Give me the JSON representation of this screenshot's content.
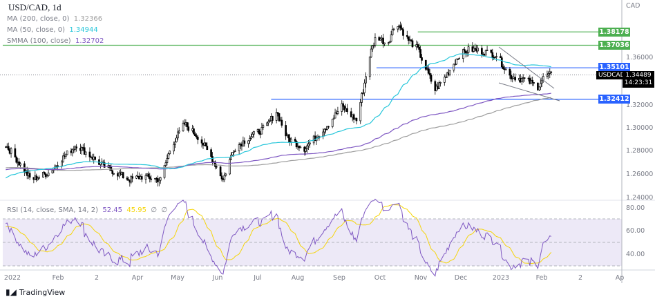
{
  "header": {
    "title": "USD/CAD, 1d",
    "currency": "CAD",
    "logo": "TradingView"
  },
  "indicators": [
    {
      "label": "MA (200, close, 0)",
      "value": "1.32366",
      "color": "#9e9e9e"
    },
    {
      "label": "MA (50, close, 0)",
      "value": "1.34944",
      "color": "#26c6da"
    },
    {
      "label": "SMMA (100, close)",
      "value": "1.32702",
      "color": "#7e57c2"
    }
  ],
  "rsi": {
    "label": "RSI (14, close, SMA, 14, 2)",
    "value": "52.45",
    "sma": "45.95",
    "extra1": "∅",
    "extra2": "∅",
    "ticks": [
      "80.00",
      "60.00",
      "40.00"
    ],
    "rsi_color": "#7e57c2",
    "sma_color": "#f5d50a"
  },
  "chart_data": {
    "type": "candlestick",
    "symbol": "USDCAD",
    "ylim": [
      1.235,
      1.395
    ],
    "y_ticks": [
      "1.36000",
      "1.32000",
      "1.30000",
      "1.28000",
      "1.26000",
      "1.24000"
    ],
    "x_ticks": [
      "2022",
      "Feb",
      "2",
      "Apr",
      "May",
      "Jun",
      "Jul",
      "Aug",
      "Sep",
      "Oct",
      "Nov",
      "Dec",
      "2023",
      "Feb",
      "2",
      "Ap"
    ],
    "approx_closes": [
      [
        "2021-12-25",
        1.288
      ],
      [
        "2022-01-02",
        1.276
      ],
      [
        "2022-01-15",
        1.255
      ],
      [
        "2022-01-28",
        1.261
      ],
      [
        "2022-02-07",
        1.273
      ],
      [
        "2022-02-18",
        1.285
      ],
      [
        "2022-02-28",
        1.276
      ],
      [
        "2022-03-10",
        1.267
      ],
      [
        "2022-03-20",
        1.261
      ],
      [
        "2022-03-30",
        1.255
      ],
      [
        "2022-04-09",
        1.258
      ],
      [
        "2022-04-22",
        1.255
      ],
      [
        "2022-04-30",
        1.284
      ],
      [
        "2022-05-10",
        1.303
      ],
      [
        "2022-05-21",
        1.291
      ],
      [
        "2022-05-31",
        1.273
      ],
      [
        "2022-06-08",
        1.255
      ],
      [
        "2022-06-16",
        1.282
      ],
      [
        "2022-06-27",
        1.291
      ],
      [
        "2022-07-10",
        1.3
      ],
      [
        "2022-07-18",
        1.314
      ],
      [
        "2022-07-26",
        1.291
      ],
      [
        "2022-08-08",
        1.282
      ],
      [
        "2022-08-16",
        1.291
      ],
      [
        "2022-08-26",
        1.303
      ],
      [
        "2022-09-05",
        1.318
      ],
      [
        "2022-09-16",
        1.306
      ],
      [
        "2022-09-21",
        1.332
      ],
      [
        "2022-09-26",
        1.362
      ],
      [
        "2022-10-01",
        1.379
      ],
      [
        "2022-10-09",
        1.371
      ],
      [
        "2022-10-16",
        1.391
      ],
      [
        "2022-10-24",
        1.376
      ],
      [
        "2022-11-01",
        1.367
      ],
      [
        "2022-11-06",
        1.353
      ],
      [
        "2022-11-14",
        1.332
      ],
      [
        "2022-11-22",
        1.344
      ],
      [
        "2022-12-02",
        1.362
      ],
      [
        "2022-12-10",
        1.367
      ],
      [
        "2022-12-20",
        1.365
      ],
      [
        "2022-12-30",
        1.362
      ],
      [
        "2023-01-09",
        1.344
      ],
      [
        "2023-01-20",
        1.341
      ],
      [
        "2023-01-30",
        1.335
      ],
      [
        "2023-02-04",
        1.344
      ],
      [
        "2023-02-09",
        1.34489
      ]
    ],
    "levels": [
      {
        "value": 1.38178,
        "label": "1.38178",
        "color": "#4caf50",
        "from": "2022-11-01"
      },
      {
        "value": 1.37036,
        "label": "1.37036",
        "color": "#4caf50",
        "from": "2021-12-20"
      },
      {
        "value": 1.35101,
        "label": "1.35101",
        "color": "#2962ff",
        "from": "2022-10-01"
      },
      {
        "value": 1.32412,
        "label": "1.32412",
        "color": "#2962ff",
        "from": "2022-07-14"
      }
    ],
    "last_price": {
      "value": 1.34489,
      "label": "1.34489",
      "countdown": "14:23:31"
    }
  }
}
